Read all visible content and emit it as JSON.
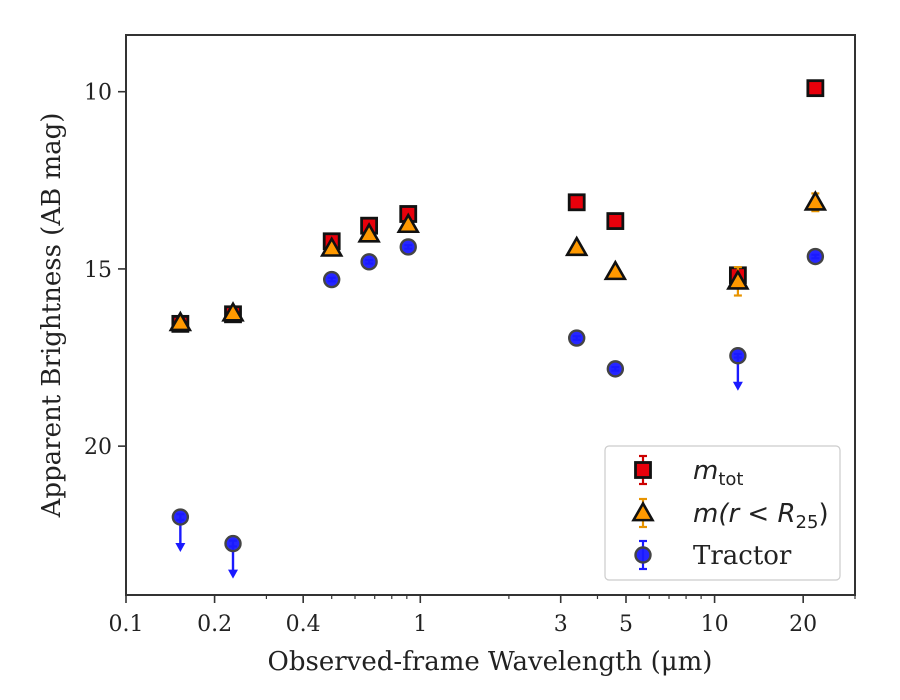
{
  "chart_data": {
    "type": "scatter",
    "title": "",
    "xlabel": "Observed-frame Wavelength (μm)",
    "ylabel": "Apparent Brightness (AB mag)",
    "x_scale": "log",
    "xlim": [
      0.1,
      30
    ],
    "ylim": [
      24.2,
      8.4
    ],
    "y_inverted": true,
    "grid": false,
    "legend_position": "bottom-right",
    "x_ticks": [
      {
        "value": 0.1,
        "label": "0.1"
      },
      {
        "value": 0.2,
        "label": "0.2"
      },
      {
        "value": 0.4,
        "label": "0.4"
      },
      {
        "value": 1,
        "label": "1"
      },
      {
        "value": 3,
        "label": "3"
      },
      {
        "value": 5,
        "label": "5"
      },
      {
        "value": 10,
        "label": "10"
      },
      {
        "value": 20,
        "label": "20"
      }
    ],
    "y_ticks": [
      {
        "value": 10,
        "label": "10"
      },
      {
        "value": 15,
        "label": "15"
      },
      {
        "value": 20,
        "label": "20"
      }
    ],
    "series": [
      {
        "name": "m_tot",
        "legend_main": "m",
        "legend_sub": "tot",
        "marker": "square",
        "color": "#e8000b",
        "points": [
          {
            "x": 0.153,
            "y": 16.55,
            "err": 0.05
          },
          {
            "x": 0.231,
            "y": 16.28,
            "err": 0.05
          },
          {
            "x": 0.5,
            "y": 14.22,
            "err": 0.05
          },
          {
            "x": 0.67,
            "y": 13.78,
            "err": 0.05
          },
          {
            "x": 0.91,
            "y": 13.45,
            "err": 0.05
          },
          {
            "x": 3.4,
            "y": 13.12,
            "err": 0.05
          },
          {
            "x": 4.6,
            "y": 13.65,
            "err": 0.05
          },
          {
            "x": 12.0,
            "y": 15.18,
            "err": 0.08
          },
          {
            "x": 22.0,
            "y": 9.9,
            "err": 0.05
          }
        ]
      },
      {
        "name": "m(r < R25)",
        "legend_main": "m(r < R",
        "legend_sub": "25",
        "legend_tail": ")",
        "marker": "triangle",
        "color": "#ff9900",
        "points": [
          {
            "x": 0.153,
            "y": 16.52,
            "err": 0.05
          },
          {
            "x": 0.231,
            "y": 16.25,
            "err": 0.05
          },
          {
            "x": 0.5,
            "y": 14.42,
            "err": 0.05
          },
          {
            "x": 0.67,
            "y": 14.02,
            "err": 0.05
          },
          {
            "x": 0.91,
            "y": 13.75,
            "err": 0.05
          },
          {
            "x": 3.4,
            "y": 14.4,
            "err": 0.05
          },
          {
            "x": 4.6,
            "y": 15.08,
            "err": 0.05
          },
          {
            "x": 12.0,
            "y": 15.35,
            "err": 0.4
          },
          {
            "x": 22.0,
            "y": 13.12,
            "err": 0.25
          }
        ]
      },
      {
        "name": "Tractor",
        "marker": "circle",
        "color": "#1a1aff",
        "points": [
          {
            "x": 0.153,
            "y": 22.0,
            "err": 0.08,
            "upper_limit": true
          },
          {
            "x": 0.231,
            "y": 22.75,
            "err": 0.08,
            "upper_limit": true
          },
          {
            "x": 0.5,
            "y": 15.3,
            "err": 0.05
          },
          {
            "x": 0.67,
            "y": 14.8,
            "err": 0.05
          },
          {
            "x": 0.91,
            "y": 14.38,
            "err": 0.05
          },
          {
            "x": 3.4,
            "y": 16.95,
            "err": 0.05
          },
          {
            "x": 4.6,
            "y": 17.82,
            "err": 0.05
          },
          {
            "x": 12.0,
            "y": 17.45,
            "err": 0.05,
            "upper_limit": true
          },
          {
            "x": 22.0,
            "y": 14.65,
            "err": 0.05
          }
        ]
      }
    ]
  }
}
